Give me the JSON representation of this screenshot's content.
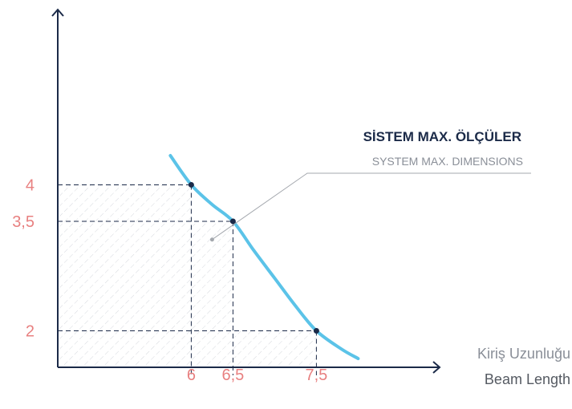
{
  "colors": {
    "axis": "#1b2a48",
    "curve": "#5bc3e8",
    "tick_label": "#e88080",
    "guide": "#1b2a48",
    "hatch": "#d6d9de",
    "annotation_title": "#1b2a48",
    "annotation_sub": "#8a8f98",
    "annotation_line": "#a4a8ae",
    "x_title_tr": "#8a8f98",
    "x_title_en": "#555a62"
  },
  "chart_data": {
    "type": "line",
    "title": "",
    "xlabel": "Kiriş Uzunluğu",
    "xlabel_secondary": "Beam Length",
    "ylabel": "",
    "x_ticks": [
      {
        "value": 6,
        "label": "6"
      },
      {
        "value": 6.5,
        "label": "6,5"
      },
      {
        "value": 7.5,
        "label": "7,5"
      }
    ],
    "y_ticks": [
      {
        "value": 4,
        "label": "4"
      },
      {
        "value": 3.5,
        "label": "3,5"
      },
      {
        "value": 2,
        "label": "2"
      }
    ],
    "xlim": [
      4.4,
      8.9
    ],
    "ylim": [
      1.5,
      6.4
    ],
    "series": [
      {
        "points": [
          [
            6,
            4
          ],
          [
            6.5,
            3.5
          ],
          [
            7.5,
            2
          ]
        ],
        "curve": [
          [
            5.75,
            4.4
          ],
          [
            6,
            4
          ],
          [
            6.25,
            3.73
          ],
          [
            6.5,
            3.5
          ],
          [
            6.75,
            3.1
          ],
          [
            7,
            2.72
          ],
          [
            7.25,
            2.34
          ],
          [
            7.5,
            2
          ],
          [
            7.8,
            1.75
          ],
          [
            8.0,
            1.62
          ]
        ]
      }
    ],
    "annotation": {
      "title": "SİSTEM MAX. ÖLÇÜLER",
      "subtitle": "SYSTEM MAX. DIMENSIONS",
      "pointer_x": 6.25,
      "pointer_y": 3.25
    },
    "grid": false,
    "legend": "none"
  }
}
